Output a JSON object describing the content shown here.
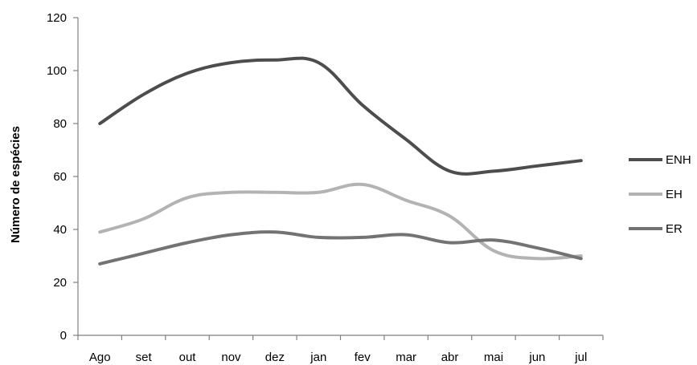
{
  "chart_data": {
    "type": "line",
    "title": "",
    "xlabel": "",
    "ylabel": "Número de espécies",
    "ylim": [
      0,
      120
    ],
    "yticks": [
      0,
      20,
      40,
      60,
      80,
      100,
      120
    ],
    "grid": false,
    "legend": "right",
    "categories": [
      "Ago",
      "set",
      "out",
      "nov",
      "dez",
      "jan",
      "fev",
      "mar",
      "abr",
      "mai",
      "jun",
      "jul"
    ],
    "series": [
      {
        "name": "ENH",
        "color": "#4d4d4d",
        "values": [
          80,
          91,
          99,
          103,
          104,
          103,
          87,
          74,
          62,
          62,
          64,
          66
        ]
      },
      {
        "name": "EH",
        "color": "#b3b3b3",
        "values": [
          39,
          44,
          52,
          54,
          54,
          54,
          57,
          51,
          45,
          32,
          29,
          30
        ]
      },
      {
        "name": "ER",
        "color": "#737373",
        "values": [
          27,
          31,
          35,
          38,
          39,
          37,
          37,
          38,
          35,
          36,
          33,
          29
        ]
      }
    ]
  }
}
